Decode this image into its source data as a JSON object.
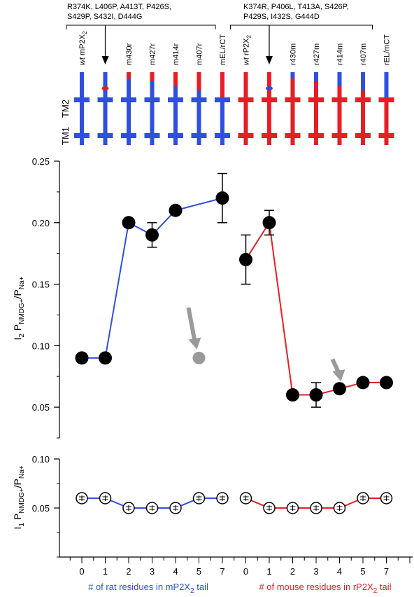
{
  "colors": {
    "blue": "#2f4fe0",
    "red": "#e81d25",
    "gray": "#9a9a9a",
    "black": "#000000"
  },
  "schematic": {
    "mutations_mouse": [
      "R374K, L406P, A413T, P426S,",
      "S429P, S432I, D444G"
    ],
    "mutations_rat": [
      "K374R, P406L, T413A, S426P,",
      "P429S,  I432S, G444D"
    ],
    "tm_labels": {
      "tm2": "TM2",
      "tm1": "TM1"
    },
    "constructs": [
      {
        "label_italic": "wt",
        "label": " mP2X",
        "sub": "2",
        "color": "blue",
        "tip": null,
        "dot": null
      },
      {
        "label_italic": "",
        "label": "",
        "sub": "",
        "color": "blue",
        "tip": null,
        "dot": "red"
      },
      {
        "label_italic": "",
        "label": "m430r",
        "sub": "",
        "color": "blue",
        "tip": "red",
        "dot": null
      },
      {
        "label_italic": "",
        "label": "m427r",
        "sub": "",
        "color": "blue",
        "tip": "red",
        "dot": null
      },
      {
        "label_italic": "",
        "label": "m414r",
        "sub": "",
        "color": "blue",
        "tip": "red",
        "dot": null
      },
      {
        "label_italic": "",
        "label": "m407r",
        "sub": "",
        "color": "blue",
        "tip": "red",
        "dot": null
      },
      {
        "label_italic": "",
        "label": "mEL/rCT",
        "sub": "",
        "color": "blue",
        "tip": "redfull",
        "dot": null
      },
      {
        "label_italic": "wt",
        "label": " rP2X",
        "sub": "2",
        "color": "red",
        "tip": null,
        "dot": null
      },
      {
        "label_italic": "",
        "label": "",
        "sub": "",
        "color": "red",
        "tip": null,
        "dot": "blue"
      },
      {
        "label_italic": "",
        "label": "r430m",
        "sub": "",
        "color": "red",
        "tip": "blue",
        "dot": null
      },
      {
        "label_italic": "",
        "label": "r427m",
        "sub": "",
        "color": "red",
        "tip": "blue",
        "dot": null
      },
      {
        "label_italic": "",
        "label": "r414m",
        "sub": "",
        "color": "red",
        "tip": "blue",
        "dot": null
      },
      {
        "label_italic": "",
        "label": "r407m",
        "sub": "",
        "color": "red",
        "tip": "blue",
        "dot": null
      },
      {
        "label_italic": "",
        "label": "rEL/mCT",
        "sub": "",
        "color": "red",
        "tip": "bluefull",
        "dot": null
      }
    ]
  },
  "chart_data": [
    {
      "type": "line",
      "ylabel": {
        "main": "I",
        "sub1": "2",
        "mid": " P",
        "sub2": "NMDG+",
        "end": "/P",
        "sub3": "Na+"
      },
      "ylim": [
        0.025,
        0.25
      ],
      "yticks": [
        0.25,
        0.2,
        0.15,
        0.1,
        0.05
      ],
      "ytick_labels": [
        "0.25",
        "0.20",
        "0.15",
        "0.10",
        "0.05"
      ],
      "marker": "filled",
      "series": [
        {
          "color": "blue",
          "positions": [
            0,
            1,
            2,
            3,
            4,
            6
          ],
          "values": [
            0.09,
            0.09,
            0.2,
            0.19,
            0.21,
            0.22
          ],
          "errors": [
            0,
            0.003,
            0,
            0.01,
            0,
            0.02
          ]
        },
        {
          "color": "red",
          "positions": [
            7,
            8,
            9,
            10,
            11,
            12,
            13
          ],
          "values": [
            0.17,
            0.2,
            0.06,
            0.06,
            0.065,
            0.07,
            0.07
          ],
          "errors": [
            0.02,
            0.01,
            0,
            0.01,
            0,
            0,
            0
          ]
        }
      ],
      "extra_points": [
        {
          "color": "gray",
          "position": 5,
          "value": 0.09
        }
      ],
      "arrows": [
        {
          "color": "gray",
          "position": 4.55,
          "from": 0.131,
          "to": 0.097
        },
        {
          "color": "gray",
          "position": 10.7,
          "from": 0.089,
          "to": 0.071
        }
      ]
    },
    {
      "type": "line",
      "ylabel": {
        "main": "I",
        "sub1": "1",
        "mid": " P",
        "sub2": "NMDG+",
        "end": "/P",
        "sub3": "Na+"
      },
      "ylim": [
        0.0,
        0.1
      ],
      "yticks": [
        0.1,
        0.05
      ],
      "ytick_labels": [
        "0.10",
        "0.05"
      ],
      "marker": "open",
      "series": [
        {
          "color": "blue",
          "positions": [
            0,
            1,
            2,
            3,
            4,
            5,
            6
          ],
          "values": [
            0.06,
            0.06,
            0.05,
            0.05,
            0.05,
            0.06,
            0.06
          ]
        },
        {
          "color": "red",
          "positions": [
            7,
            8,
            9,
            10,
            11,
            12,
            13
          ],
          "values": [
            0.06,
            0.05,
            0.05,
            0.05,
            0.05,
            0.06,
            0.06
          ]
        }
      ]
    }
  ],
  "x_axis": {
    "tick_labels": [
      "0",
      "1",
      "2",
      "3",
      "4",
      "5",
      "7",
      "0",
      "1",
      "2",
      "3",
      "4",
      "5",
      "7"
    ],
    "tick_colors": [
      "blue",
      "blue",
      "blue",
      "blue",
      "blue",
      "blue",
      "blue",
      "red",
      "red",
      "red",
      "red",
      "red",
      "red",
      "red"
    ],
    "label_left": {
      "text": "# of rat residues in mP2X",
      "sub": "2",
      "end": " tail"
    },
    "label_right": {
      "text": "# of mouse residues in rP2X",
      "sub": "2",
      "end": " tail"
    }
  }
}
